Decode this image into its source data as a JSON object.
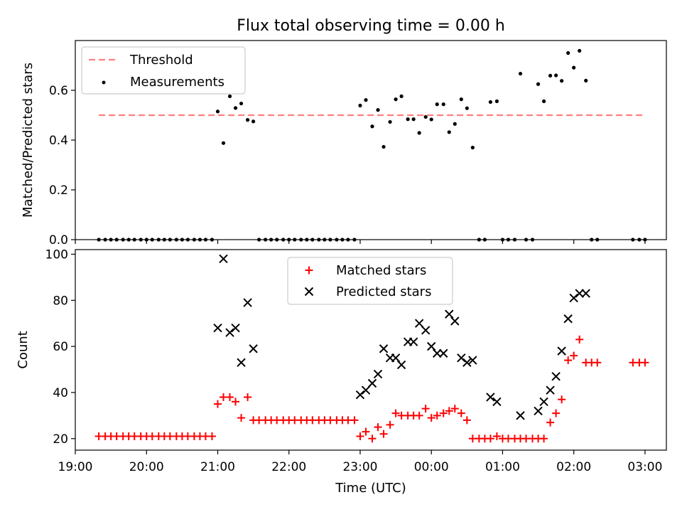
{
  "chart_data": [
    {
      "type": "scatter",
      "title": "Flux total observing time = 0.00 h",
      "ylabel": "Matched/Predicted stars",
      "xlabel": "",
      "ylim": [
        0,
        0.8
      ],
      "yticks": [
        0.0,
        0.2,
        0.4,
        0.6
      ],
      "ytick_labels": [
        "0.0",
        "0.2",
        "0.4",
        "0.6"
      ],
      "xticks_hours": [
        19,
        20,
        21,
        22,
        23,
        24,
        25,
        26,
        27
      ],
      "threshold": {
        "name": "Threshold",
        "value": 0.5,
        "x_start": 19.33,
        "x_end": 27.0,
        "color": "#ff7f7f"
      },
      "series": [
        {
          "name": "Measurements",
          "color": "#000000",
          "x": [
            19.33,
            19.42,
            19.5,
            19.58,
            19.67,
            19.75,
            19.83,
            19.92,
            20.0,
            20.08,
            20.17,
            20.25,
            20.33,
            20.42,
            20.5,
            20.58,
            20.67,
            20.75,
            20.83,
            20.92,
            21.0,
            21.08,
            21.17,
            21.25,
            21.33,
            21.42,
            21.5,
            21.58,
            21.67,
            21.75,
            21.83,
            21.92,
            22.0,
            22.08,
            22.17,
            22.25,
            22.33,
            22.42,
            22.5,
            22.58,
            22.67,
            22.75,
            22.83,
            22.92,
            23.0,
            23.08,
            23.17,
            23.25,
            23.33,
            23.42,
            23.5,
            23.58,
            23.67,
            23.75,
            23.83,
            23.92,
            24.0,
            24.08,
            24.17,
            24.25,
            24.33,
            24.42,
            24.5,
            24.58,
            24.67,
            24.75,
            24.83,
            24.92,
            25.0,
            25.08,
            25.17,
            25.25,
            25.33,
            25.42,
            25.5,
            25.58,
            25.67,
            25.75,
            25.83,
            25.92,
            26.0,
            26.08,
            26.17,
            26.25,
            26.33,
            26.83,
            26.92,
            27.0
          ],
          "y": [
            0,
            0,
            0,
            0,
            0,
            0,
            0,
            0,
            0,
            0,
            0,
            0,
            0,
            0,
            0,
            0,
            0,
            0,
            0,
            0,
            0.515,
            0.388,
            0.576,
            0.529,
            0.547,
            0.481,
            0.475,
            0,
            0,
            0,
            0,
            0,
            0,
            0,
            0,
            0,
            0,
            0,
            0,
            0,
            0,
            0,
            0,
            0,
            0.539,
            0.561,
            0.455,
            0.521,
            0.373,
            0.473,
            0.564,
            0.576,
            0.484,
            0.484,
            0.429,
            0.493,
            0.483,
            0.544,
            0.544,
            0.432,
            0.465,
            0.564,
            0.528,
            0.37,
            0,
            0,
            0.553,
            0.556,
            0,
            0,
            0,
            0.667,
            0,
            0,
            0.625,
            0.556,
            0.659,
            0.66,
            0.638,
            0.75,
            0.691,
            0.759,
            0.639,
            0,
            0,
            0,
            0,
            0
          ]
        }
      ]
    },
    {
      "type": "scatter",
      "title": "",
      "xlabel": "Time (UTC)",
      "ylabel": "Count",
      "xlim_hours": [
        19.0,
        27.3
      ],
      "ylim": [
        15,
        102
      ],
      "yticks": [
        20,
        40,
        60,
        80,
        100
      ],
      "ytick_labels": [
        "20",
        "40",
        "60",
        "80",
        "100"
      ],
      "xticks_hours": [
        19,
        20,
        21,
        22,
        23,
        24,
        25,
        26,
        27
      ],
      "xtick_labels": [
        "19:00",
        "20:00",
        "21:00",
        "22:00",
        "23:00",
        "00:00",
        "01:00",
        "02:00",
        "03:00"
      ],
      "legend_position": "top-center",
      "series": [
        {
          "name": "Matched stars",
          "marker": "plus",
          "color": "#ff0000",
          "x": [
            19.33,
            19.42,
            19.5,
            19.58,
            19.67,
            19.75,
            19.83,
            19.92,
            20.0,
            20.08,
            20.17,
            20.25,
            20.33,
            20.42,
            20.5,
            20.58,
            20.67,
            20.75,
            20.83,
            20.92,
            21.0,
            21.08,
            21.17,
            21.25,
            21.33,
            21.42,
            21.5,
            21.58,
            21.67,
            21.75,
            21.83,
            21.92,
            22.0,
            22.08,
            22.17,
            22.25,
            22.33,
            22.42,
            22.5,
            22.58,
            22.67,
            22.75,
            22.83,
            22.92,
            23.0,
            23.08,
            23.17,
            23.25,
            23.33,
            23.42,
            23.5,
            23.58,
            23.67,
            23.75,
            23.83,
            23.92,
            24.0,
            24.08,
            24.17,
            24.25,
            24.33,
            24.42,
            24.5,
            24.58,
            24.67,
            24.75,
            24.83,
            24.92,
            25.0,
            25.08,
            25.17,
            25.25,
            25.33,
            25.42,
            25.5,
            25.58,
            25.67,
            25.75,
            25.83,
            25.92,
            26.0,
            26.08,
            26.17,
            26.25,
            26.33,
            26.83,
            26.92,
            27.0
          ],
          "y": [
            21,
            21,
            21,
            21,
            21,
            21,
            21,
            21,
            21,
            21,
            21,
            21,
            21,
            21,
            21,
            21,
            21,
            21,
            21,
            21,
            35,
            38,
            38,
            36,
            29,
            38,
            28,
            28,
            28,
            28,
            28,
            28,
            28,
            28,
            28,
            28,
            28,
            28,
            28,
            28,
            28,
            28,
            28,
            28,
            21,
            23,
            20,
            25,
            22,
            26,
            31,
            30,
            30,
            30,
            30,
            33,
            29,
            30,
            31,
            32,
            33,
            31,
            28,
            20,
            20,
            20,
            20,
            21,
            20,
            20,
            20,
            20,
            20,
            20,
            20,
            20,
            27,
            31,
            37,
            54,
            56,
            63,
            53,
            53,
            53,
            53,
            53,
            53
          ]
        },
        {
          "name": "Predicted stars",
          "marker": "x",
          "color": "#000000",
          "x": [
            21.0,
            21.08,
            21.17,
            21.25,
            21.33,
            21.42,
            21.5,
            23.0,
            23.08,
            23.17,
            23.25,
            23.33,
            23.42,
            23.5,
            23.58,
            23.67,
            23.75,
            23.83,
            23.92,
            24.0,
            24.08,
            24.17,
            24.25,
            24.33,
            24.42,
            24.5,
            24.58,
            24.83,
            24.92,
            25.25,
            25.5,
            25.58,
            25.67,
            25.75,
            25.83,
            25.92,
            26.0,
            26.08,
            26.17
          ],
          "y": [
            68,
            98,
            66,
            68,
            53,
            79,
            59,
            39,
            41,
            44,
            48,
            59,
            55,
            55,
            52,
            62,
            62,
            70,
            67,
            60,
            57,
            57,
            74,
            71,
            55,
            53,
            54,
            38,
            36,
            30,
            32,
            36,
            41,
            47,
            58,
            72,
            81,
            83,
            83
          ]
        }
      ]
    }
  ]
}
